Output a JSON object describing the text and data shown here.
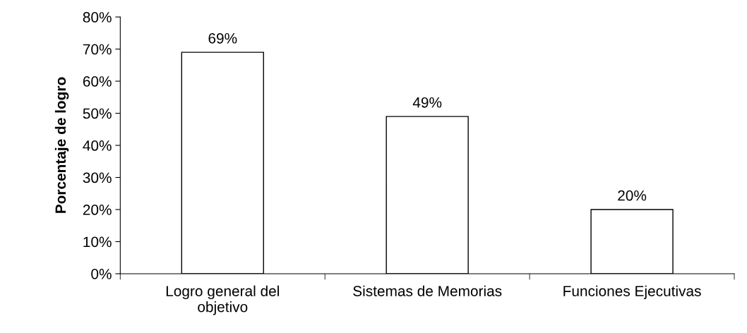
{
  "chart_data": {
    "type": "bar",
    "ylabel": "Porcentaje de logro",
    "categories": [
      "Logro general del\nobjetivo",
      "Sistemas de Memorias",
      "Funciones Ejecutivas"
    ],
    "values": [
      69,
      49,
      20
    ],
    "value_labels": [
      "69%",
      "49%",
      "20%"
    ],
    "color": "#ffffff",
    "ylim": [
      0,
      80
    ],
    "yticks": [
      {
        "value": 0,
        "label": "0%"
      },
      {
        "value": 10,
        "label": "10%"
      },
      {
        "value": 20,
        "label": "20%"
      },
      {
        "value": 30,
        "label": "30%"
      },
      {
        "value": 40,
        "label": "40%"
      },
      {
        "value": 50,
        "label": "50%"
      },
      {
        "value": 60,
        "label": "60%"
      },
      {
        "value": 70,
        "label": "70%"
      },
      {
        "value": 80,
        "label": "80%"
      }
    ],
    "grid": false,
    "legend": false
  }
}
